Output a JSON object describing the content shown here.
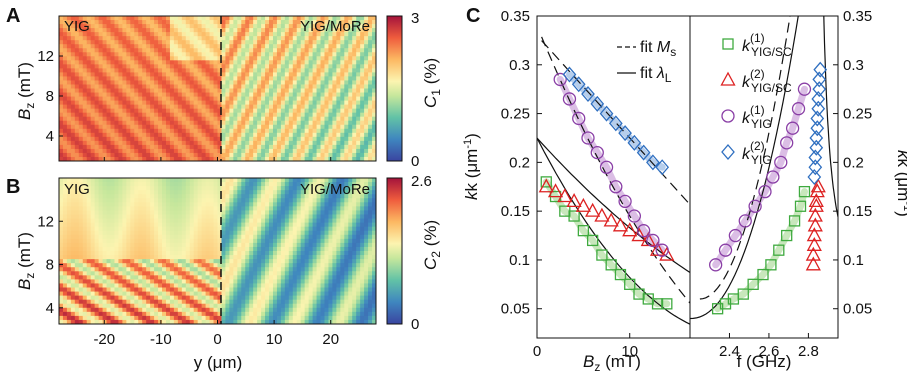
{
  "panels": {
    "A": {
      "letter": "A",
      "left_label": "YIG",
      "right_label": "YIG/MoRe",
      "colorbar": {
        "min_label": "0",
        "max_label": "3",
        "title": "C",
        "title_sub": "1",
        "title_unit": " (%)"
      }
    },
    "B": {
      "letter": "B",
      "left_label": "YIG",
      "right_label": "YIG/MoRe",
      "colorbar": {
        "min_label": "0",
        "max_label": "2.6",
        "title": "C",
        "title_sub": "2",
        "title_unit": " (%)"
      }
    },
    "C": {
      "letter": "C"
    }
  },
  "axes_AB": {
    "ylabel_main": "B",
    "ylabel_sub": "z",
    "ylabel_unit": " (mT)",
    "xlabel": "y (μm)",
    "yticks_A": [
      "4",
      "8",
      "12"
    ],
    "yticks_B": [
      "4",
      "8",
      "12"
    ],
    "xticks": [
      "-20",
      "-10",
      "0",
      "10",
      "20"
    ]
  },
  "axes_C": {
    "ylabel_left": "k (μm",
    "ylabel_right": "k (μm",
    "ylabel_sup": "-1",
    "ylabel_close": ")",
    "yticks": [
      "0.05",
      "0.1",
      "0.15",
      "0.2",
      "0.25",
      "0.3",
      "0.35"
    ],
    "left_xlabel_main": "B",
    "left_xlabel_sub": "z",
    "left_xlabel_unit": " (mT)",
    "left_xticks": [
      "0",
      "10"
    ],
    "right_xlabel": "f (GHz)",
    "right_xticks": [
      "2.4",
      "2.6",
      "2.8"
    ]
  },
  "legend_C": {
    "fit_Ms_text": "fit ",
    "fit_Ms_symbol": "M",
    "fit_Ms_sub": "s",
    "fit_lambda_text": "fit ",
    "fit_lambda_symbol": "λ",
    "fit_lambda_sub": "L",
    "entries": [
      {
        "main": "k",
        "sup": "(1)",
        "sub": "YIG/SC",
        "color": "#3faa3f",
        "marker": "square"
      },
      {
        "main": "k",
        "sup": "(2)",
        "sub": "YIG/SC",
        "color": "#dd2222",
        "marker": "triangle"
      },
      {
        "main": "k",
        "sup": "(1)",
        "sub": "YIG",
        "color": "#8a3fa6",
        "marker": "circle"
      },
      {
        "main": "k",
        "sup": "(2)",
        "sub": "YIG",
        "color": "#2f6fc0",
        "marker": "diamond"
      }
    ]
  },
  "colors": {
    "green": "#3faa3f",
    "red": "#dd2222",
    "purple": "#8a3fa6",
    "blue": "#2f6fc0",
    "green_band": "#b5dfa5",
    "purple_band": "#cfa8dc",
    "blue_band": "#9dbde6"
  },
  "chart_data": [
    {
      "type": "heatmap",
      "panel": "A",
      "x_range": [
        -28,
        28
      ],
      "y_range": [
        1.5,
        16
      ],
      "color_range": [
        0,
        3
      ],
      "colormap": "spectral"
    },
    {
      "type": "heatmap",
      "panel": "B",
      "x_range": [
        -28,
        28
      ],
      "y_range": [
        2.5,
        16
      ],
      "color_range": [
        0,
        2.6
      ],
      "colormap": "spectral"
    },
    {
      "type": "scatter",
      "panel": "C-left",
      "x_range": [
        0,
        16.5
      ],
      "y_range": [
        0.02,
        0.35
      ],
      "series": [
        {
          "name": "k(1) YIG/SC",
          "marker": "square",
          "color": "#3faa3f",
          "x": [
            1,
            2,
            3,
            4,
            5,
            6,
            7,
            8,
            9,
            10,
            11,
            12,
            13,
            14
          ],
          "y": [
            0.18,
            0.165,
            0.15,
            0.145,
            0.13,
            0.12,
            0.105,
            0.095,
            0.085,
            0.075,
            0.065,
            0.06,
            0.055,
            0.055
          ]
        },
        {
          "name": "k(2) YIG/SC",
          "marker": "triangle",
          "color": "#dd2222",
          "x": [
            1,
            2,
            3,
            4,
            5,
            6,
            7,
            8,
            9,
            10,
            11,
            12,
            13,
            14
          ],
          "y": [
            0.175,
            0.17,
            0.165,
            0.16,
            0.155,
            0.15,
            0.145,
            0.14,
            0.135,
            0.13,
            0.125,
            0.12,
            0.11,
            0.105
          ]
        },
        {
          "name": "k(1) YIG",
          "marker": "circle",
          "color": "#8a3fa6",
          "x": [
            2.5,
            3.5,
            4.5,
            5.5,
            6.5,
            7.5,
            8.5,
            9.5,
            10.5,
            11.5,
            12.5,
            13.5
          ],
          "y": [
            0.285,
            0.265,
            0.245,
            0.225,
            0.21,
            0.195,
            0.175,
            0.16,
            0.145,
            0.13,
            0.12,
            0.11
          ]
        },
        {
          "name": "k(2) YIG",
          "marker": "diamond",
          "color": "#2f6fc0",
          "x": [
            3.5,
            4.5,
            5.5,
            6.5,
            7.5,
            8.5,
            9.5,
            10.5,
            11.5,
            12.5,
            13.5
          ],
          "y": [
            0.29,
            0.28,
            0.27,
            0.26,
            0.25,
            0.24,
            0.23,
            0.22,
            0.21,
            0.2,
            0.195
          ]
        }
      ]
    },
    {
      "type": "scatter",
      "panel": "C-right",
      "x_range": [
        2.2,
        2.95
      ],
      "y_range": [
        0.02,
        0.35
      ],
      "series": [
        {
          "name": "k(1) YIG/SC",
          "marker": "square",
          "color": "#3faa3f",
          "x": [
            2.34,
            2.38,
            2.42,
            2.47,
            2.52,
            2.57,
            2.61,
            2.65,
            2.69,
            2.73,
            2.76,
            2.78
          ],
          "y": [
            0.05,
            0.055,
            0.06,
            0.065,
            0.075,
            0.085,
            0.095,
            0.11,
            0.125,
            0.14,
            0.155,
            0.17
          ]
        },
        {
          "name": "k(2) YIG/SC",
          "marker": "triangle",
          "color": "#dd2222",
          "x": [
            2.825,
            2.825,
            2.83,
            2.83,
            2.835,
            2.835,
            2.84,
            2.84,
            2.845,
            2.85
          ],
          "y": [
            0.095,
            0.105,
            0.115,
            0.125,
            0.135,
            0.145,
            0.155,
            0.16,
            0.17,
            0.175
          ]
        },
        {
          "name": "k(1) YIG",
          "marker": "circle",
          "color": "#8a3fa6",
          "x": [
            2.33,
            2.38,
            2.43,
            2.48,
            2.53,
            2.58,
            2.62,
            2.66,
            2.69,
            2.72,
            2.75,
            2.78
          ],
          "y": [
            0.095,
            0.11,
            0.125,
            0.14,
            0.155,
            0.17,
            0.185,
            0.2,
            0.22,
            0.235,
            0.255,
            0.275
          ]
        },
        {
          "name": "k(2) YIG",
          "marker": "diamond",
          "color": "#2f6fc0",
          "x": [
            2.83,
            2.835,
            2.835,
            2.84,
            2.84,
            2.845,
            2.845,
            2.85,
            2.85,
            2.855,
            2.855,
            2.86
          ],
          "y": [
            0.185,
            0.195,
            0.205,
            0.215,
            0.225,
            0.235,
            0.245,
            0.255,
            0.265,
            0.275,
            0.285,
            0.295
          ]
        }
      ]
    }
  ]
}
